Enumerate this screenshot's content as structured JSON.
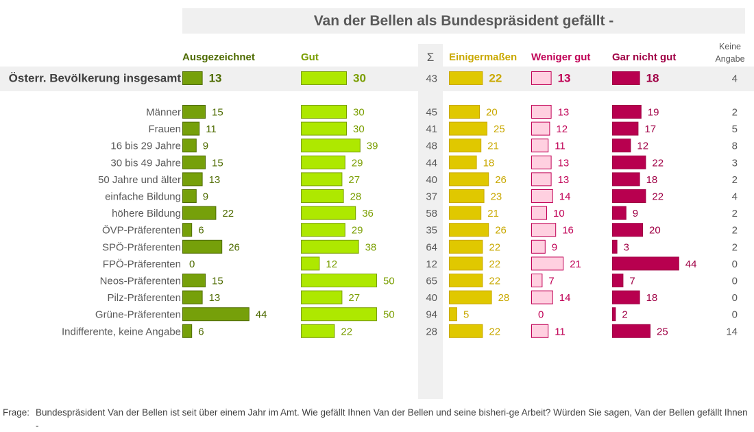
{
  "title": "Van der Bellen als Bundespräsident gefällt -",
  "question": {
    "label": "Frage:",
    "text": "Bundespräsident Van der Bellen ist seit über einem Jahr im Amt. Wie gefällt Ihnen Van der Bellen und seine bisheri-ge Arbeit? Würden Sie sagen, Van der Bellen gefällt Ihnen -"
  },
  "colors": {
    "ausgezeichnet": "#76A00A",
    "ausgezeichnet_text": "#4E6B00",
    "gut": "#AEE800",
    "gut_text": "#7A9E00",
    "einigermassen": "#E0C800",
    "einigermassen_text": "#C9A800",
    "weniger_gut": "#FFD0E0",
    "weniger_gut_text": "#C00055",
    "gar_nicht_gut": "#B8004F",
    "gar_nicht_gut_text": "#A00045",
    "neutral_text": "#595959",
    "highlight_band": "#f0f0f0"
  },
  "chart_data": {
    "type": "bar",
    "title": "Van der Bellen als Bundespräsident gefällt -",
    "unit": "%",
    "sum_label": "Σ",
    "categories": [
      "Österr. Bevölkerung insgesamt",
      "Männer",
      "Frauen",
      "16 bis 29 Jahre",
      "30 bis 49 Jahre",
      "50 Jahre und älter",
      "einfache Bildung",
      "höhere Bildung",
      "ÖVP-Präferenten",
      "SPÖ-Präferenten",
      "FPÖ-Präferenten",
      "Neos-Präferenten",
      "Pilz-Präferenten",
      "Grüne-Präferenten",
      "Indifferente, keine Angabe"
    ],
    "groups": [
      [
        0
      ],
      [
        1,
        2
      ],
      [
        3,
        4,
        5
      ],
      [
        6,
        7
      ],
      [
        8,
        9,
        10,
        11,
        12,
        13,
        14
      ]
    ],
    "series": [
      {
        "key": "ausgezeichnet",
        "name": "Ausgezeichnet",
        "values": [
          13,
          15,
          11,
          9,
          15,
          13,
          9,
          22,
          6,
          26,
          0,
          15,
          13,
          44,
          6
        ]
      },
      {
        "key": "gut",
        "name": "Gut",
        "values": [
          30,
          30,
          30,
          39,
          29,
          27,
          28,
          36,
          29,
          38,
          12,
          50,
          27,
          50,
          22
        ]
      },
      {
        "key": "einigermassen",
        "name": "Einigermaßen",
        "values": [
          22,
          20,
          25,
          21,
          18,
          26,
          23,
          21,
          26,
          22,
          22,
          22,
          28,
          5,
          22
        ]
      },
      {
        "key": "weniger_gut",
        "name": "Weniger gut",
        "values": [
          13,
          13,
          12,
          11,
          13,
          13,
          14,
          10,
          16,
          9,
          21,
          7,
          14,
          0,
          11
        ]
      },
      {
        "key": "gar_nicht_gut",
        "name": "Gar nicht gut",
        "values": [
          18,
          19,
          17,
          12,
          22,
          18,
          22,
          9,
          20,
          3,
          44,
          7,
          18,
          2,
          25
        ]
      }
    ],
    "sum": [
      43,
      45,
      41,
      48,
      44,
      40,
      37,
      58,
      35,
      64,
      12,
      65,
      40,
      94,
      28
    ],
    "keine_angabe": {
      "name": "Keine Angabe",
      "values": [
        4,
        2,
        5,
        8,
        3,
        2,
        4,
        2,
        2,
        2,
        0,
        0,
        0,
        0,
        14
      ]
    }
  }
}
